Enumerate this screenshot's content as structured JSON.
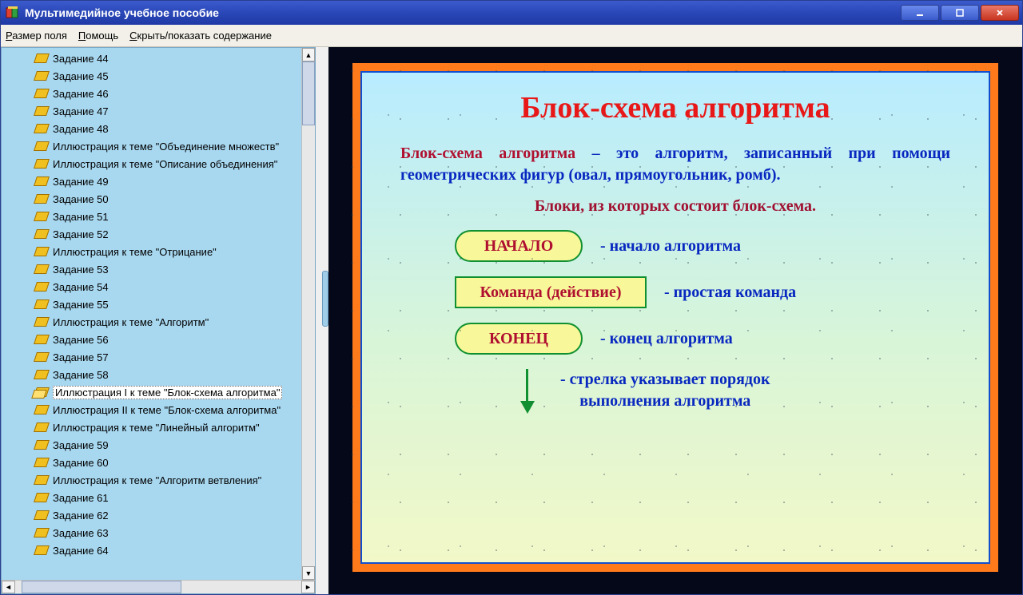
{
  "window": {
    "title": "Мультимедийное учебное пособие"
  },
  "menu": {
    "item1": "Размер поля",
    "item1_u": "Р",
    "item2": "Помощь",
    "item2_u": "П",
    "item3": "Скрыть/показать содержание",
    "item3_u": "С"
  },
  "sidebar": {
    "selected_index": 19,
    "items": [
      "Задание 44",
      "Задание 45",
      "Задание 46",
      "Задание 47",
      "Задание 48",
      "Иллюстрация к теме \"Объединение множеств\"",
      "Иллюстрация к теме \"Описание объединения\"",
      "Задание 49",
      "Задание 50",
      "Задание 51",
      "Задание 52",
      "Иллюстрация к теме \"Отрицание\"",
      "Задание 53",
      "Задание 54",
      "Задание 55",
      "Иллюстрация к теме \"Алгоритм\"",
      "Задание 56",
      "Задание 57",
      "Задание 58",
      "Иллюстрация I к теме \"Блок-схема алгоритма\"",
      "Иллюстрация II к теме \"Блок-схема алгоритма\"",
      "Иллюстрация к теме \"Линейный алгоритм\"",
      "Задание 59",
      "Задание 60",
      "Иллюстрация к теме \"Алгоритм ветвления\"",
      "Задание 61",
      "Задание 62",
      "Задание 63",
      "Задание 64"
    ]
  },
  "slide": {
    "title": "Блок-схема алгоритма",
    "para_lead": "Блок-схема алгоритма",
    "para_rest": " – это алгоритм, записанный при помощи геометрических фигур (овал, прямо­угольник, ромб).",
    "subtitle": "Блоки, из которых состоит блок-схема.",
    "blocks": [
      {
        "shape": "oval",
        "label": "НАЧАЛО",
        "desc": "- начало алгоритма"
      },
      {
        "shape": "rect",
        "label": "Команда (действие)",
        "desc": "- простая команда"
      },
      {
        "shape": "oval",
        "label": "КОНЕЦ",
        "desc": "- конец алгоритма"
      }
    ],
    "arrow_desc_l1": "- стрелка указывает порядок",
    "arrow_desc_l2": "выполнения алгоритма",
    "colors": {
      "frame_outer": "#ff7a1a",
      "frame_inner_border": "#1050d0",
      "bg_top": "#b8ecff",
      "bg_mid": "#d8f5d8",
      "bg_bot": "#f2f8c8",
      "title": "#e81818",
      "body_text": "#0828c0",
      "accent_text": "#b01030",
      "block_fill": "#f8f89a",
      "block_border": "#109030",
      "arrow": "#109030"
    }
  }
}
